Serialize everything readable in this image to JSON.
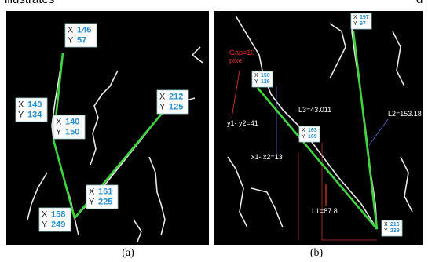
{
  "header": {
    "left": "illustrates",
    "right": "d"
  },
  "tip_letters": {
    "x": "X",
    "y": "Y"
  },
  "panel_a": {
    "tips": [
      {
        "x": "146",
        "y": "57"
      },
      {
        "x": "140",
        "y": "134"
      },
      {
        "x": "140",
        "y": "150"
      },
      {
        "x": "212",
        "y": "125"
      },
      {
        "x": "161",
        "y": "225"
      },
      {
        "x": "158",
        "y": "249"
      }
    ],
    "caption": "(a)"
  },
  "panel_b": {
    "tips": [
      {
        "x": "150",
        "y": "126"
      },
      {
        "x": "197",
        "y": "97"
      },
      {
        "x": "163",
        "y": "169"
      },
      {
        "x": "216",
        "y": "239"
      }
    ],
    "annotations": {
      "gap": "Gap=10",
      "gap_unit": "pixel",
      "dy": "y1- y2=41",
      "dx": "x1- x2=13",
      "l3": "L3=43.011",
      "l2": "L2=153.18",
      "l1": "L1=87.8"
    },
    "caption": "(b)"
  }
}
